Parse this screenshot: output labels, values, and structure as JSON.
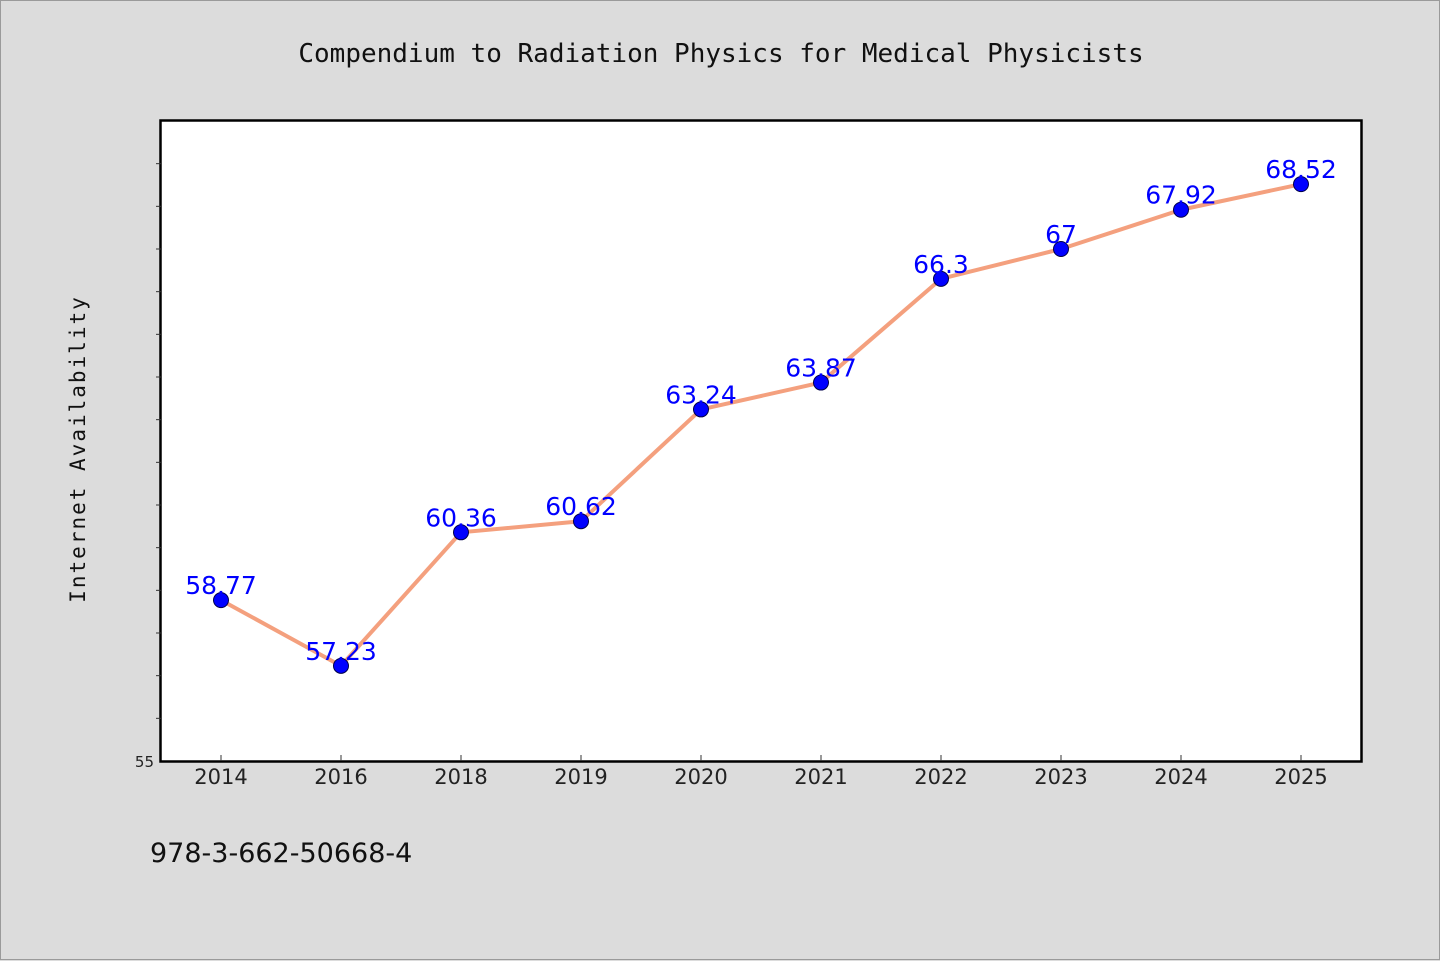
{
  "figure": {
    "caption": "978-3-662-50668-4"
  },
  "chart_data": {
    "type": "line",
    "title": "Compendium to Radiation Physics for Medical Physicists",
    "xlabel": "",
    "ylabel": "Internet Availability",
    "categories": [
      "2014",
      "2016",
      "2018",
      "2019",
      "2020",
      "2021",
      "2022",
      "2023",
      "2024",
      "2025"
    ],
    "series": [
      {
        "values": [
          58.77,
          57.23,
          60.36,
          60.62,
          63.24,
          63.87,
          66.3,
          67,
          67.92,
          68.52
        ],
        "data_labels": [
          "58.77",
          "57.23",
          "60.36",
          "60.62",
          "63.24",
          "63.87",
          "66.3",
          "67",
          "67.92",
          "68.52"
        ],
        "line_color": "#f4a07e",
        "marker_color": "#0000ff"
      }
    ],
    "ylim": [
      55,
      70
    ],
    "y_minor_tick_step": 1,
    "y_tick_labels": [
      "55"
    ],
    "grid": false,
    "legend": "none",
    "data_label_color": "#0000ff"
  }
}
